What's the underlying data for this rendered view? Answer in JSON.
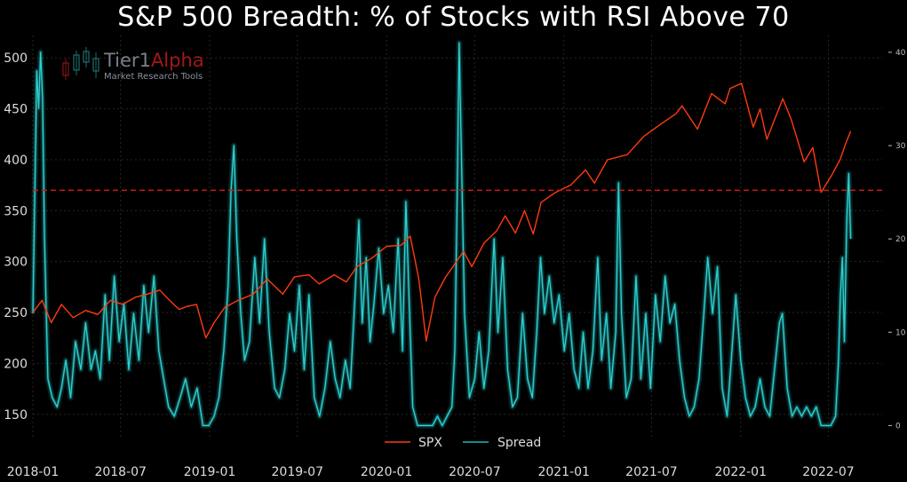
{
  "title": "S&P 500 Breadth: % of Stocks with RSI Above 70",
  "logo": {
    "name_part1": "Tier1",
    "name_part2": "Alpha",
    "tagline": "Market Research Tools"
  },
  "colors": {
    "spx": "#ff3a10",
    "spread": "#1fb8b8",
    "threshold": "#cc1a1a",
    "logo_grey": "#7a808a",
    "logo_red": "#a01818"
  },
  "chart_data": {
    "type": "line",
    "title": "S&P 500 Breadth: % of Stocks with RSI Above 70",
    "xlabel": "",
    "ylabel": "",
    "x_tick_labels": [
      "2018-01",
      "2018-07",
      "2019-01",
      "2019-07",
      "2020-01",
      "2020-07",
      "2021-01",
      "2021-07",
      "2022-01",
      "2022-07"
    ],
    "y_left_ticks": [
      150,
      200,
      250,
      300,
      350,
      400,
      450,
      500
    ],
    "y_left_lim": [
      128,
      522
    ],
    "y_right_ticks": [
      0,
      10,
      20,
      30,
      40
    ],
    "y_right_lim": [
      -1.2,
      41.8
    ],
    "grid": true,
    "legend_position": "bottom-center",
    "threshold_line": {
      "axis": "left",
      "value": 370
    },
    "series": [
      {
        "name": "SPX",
        "axis": "left",
        "points": [
          [
            "2018-01-01",
            250
          ],
          [
            "2018-01-20",
            262
          ],
          [
            "2018-02-08",
            240
          ],
          [
            "2018-03-01",
            258
          ],
          [
            "2018-03-25",
            245
          ],
          [
            "2018-04-20",
            252
          ],
          [
            "2018-05-15",
            248
          ],
          [
            "2018-06-10",
            262
          ],
          [
            "2018-07-05",
            258
          ],
          [
            "2018-08-01",
            265
          ],
          [
            "2018-08-25",
            268
          ],
          [
            "2018-09-20",
            272
          ],
          [
            "2018-10-10",
            262
          ],
          [
            "2018-10-30",
            253
          ],
          [
            "2018-11-15",
            256
          ],
          [
            "2018-12-05",
            258
          ],
          [
            "2018-12-24",
            225
          ],
          [
            "2019-01-10",
            240
          ],
          [
            "2019-02-01",
            255
          ],
          [
            "2019-03-01",
            262
          ],
          [
            "2019-04-01",
            268
          ],
          [
            "2019-04-30",
            283
          ],
          [
            "2019-06-01",
            268
          ],
          [
            "2019-06-25",
            285
          ],
          [
            "2019-07-25",
            287
          ],
          [
            "2019-08-15",
            278
          ],
          [
            "2019-09-15",
            287
          ],
          [
            "2019-10-10",
            280
          ],
          [
            "2019-11-01",
            295
          ],
          [
            "2019-12-01",
            303
          ],
          [
            "2020-01-01",
            315
          ],
          [
            "2020-01-31",
            316
          ],
          [
            "2020-02-19",
            325
          ],
          [
            "2020-03-08",
            282
          ],
          [
            "2020-03-23",
            222
          ],
          [
            "2020-04-10",
            265
          ],
          [
            "2020-05-01",
            284
          ],
          [
            "2020-06-08",
            310
          ],
          [
            "2020-06-25",
            295
          ],
          [
            "2020-07-20",
            318
          ],
          [
            "2020-08-15",
            330
          ],
          [
            "2020-09-02",
            345
          ],
          [
            "2020-09-23",
            328
          ],
          [
            "2020-10-12",
            350
          ],
          [
            "2020-10-30",
            327
          ],
          [
            "2020-11-15",
            358
          ],
          [
            "2020-12-15",
            368
          ],
          [
            "2021-01-15",
            375
          ],
          [
            "2021-02-15",
            390
          ],
          [
            "2021-03-05",
            377
          ],
          [
            "2021-04-01",
            400
          ],
          [
            "2021-05-12",
            405
          ],
          [
            "2021-06-15",
            423
          ],
          [
            "2021-07-20",
            435
          ],
          [
            "2021-08-20",
            445
          ],
          [
            "2021-09-02",
            453
          ],
          [
            "2021-10-04",
            430
          ],
          [
            "2021-11-02",
            465
          ],
          [
            "2021-11-30",
            455
          ],
          [
            "2021-12-10",
            470
          ],
          [
            "2022-01-03",
            475
          ],
          [
            "2022-01-27",
            432
          ],
          [
            "2022-02-10",
            450
          ],
          [
            "2022-02-24",
            420
          ],
          [
            "2022-03-29",
            460
          ],
          [
            "2022-04-15",
            440
          ],
          [
            "2022-05-12",
            398
          ],
          [
            "2022-05-30",
            412
          ],
          [
            "2022-06-16",
            368
          ],
          [
            "2022-07-08",
            385
          ],
          [
            "2022-07-25",
            400
          ],
          [
            "2022-08-05",
            415
          ],
          [
            "2022-08-16",
            428
          ]
        ]
      },
      {
        "name": "Spread",
        "axis": "right",
        "points": [
          [
            "2018-01-01",
            12
          ],
          [
            "2018-01-05",
            25
          ],
          [
            "2018-01-09",
            38
          ],
          [
            "2018-01-13",
            34
          ],
          [
            "2018-01-17",
            40
          ],
          [
            "2018-01-21",
            35
          ],
          [
            "2018-01-25",
            20
          ],
          [
            "2018-02-01",
            5
          ],
          [
            "2018-02-10",
            3
          ],
          [
            "2018-02-20",
            2
          ],
          [
            "2018-03-01",
            4
          ],
          [
            "2018-03-10",
            7
          ],
          [
            "2018-03-20",
            3
          ],
          [
            "2018-03-30",
            9
          ],
          [
            "2018-04-10",
            6
          ],
          [
            "2018-04-20",
            11
          ],
          [
            "2018-05-01",
            6
          ],
          [
            "2018-05-10",
            8
          ],
          [
            "2018-05-20",
            5
          ],
          [
            "2018-05-30",
            14
          ],
          [
            "2018-06-08",
            7
          ],
          [
            "2018-06-18",
            16
          ],
          [
            "2018-06-28",
            9
          ],
          [
            "2018-07-08",
            13
          ],
          [
            "2018-07-18",
            6
          ],
          [
            "2018-07-28",
            12
          ],
          [
            "2018-08-08",
            7
          ],
          [
            "2018-08-18",
            15
          ],
          [
            "2018-08-28",
            10
          ],
          [
            "2018-09-08",
            16
          ],
          [
            "2018-09-18",
            8
          ],
          [
            "2018-09-28",
            5
          ],
          [
            "2018-10-08",
            2
          ],
          [
            "2018-10-20",
            1
          ],
          [
            "2018-11-01",
            3
          ],
          [
            "2018-11-12",
            5
          ],
          [
            "2018-11-24",
            2
          ],
          [
            "2018-12-06",
            4
          ],
          [
            "2018-12-18",
            0
          ],
          [
            "2018-12-30",
            0
          ],
          [
            "2019-01-10",
            1
          ],
          [
            "2019-01-20",
            3
          ],
          [
            "2019-01-30",
            8
          ],
          [
            "2019-02-08",
            15
          ],
          [
            "2019-02-14",
            25
          ],
          [
            "2019-02-20",
            30
          ],
          [
            "2019-02-26",
            20
          ],
          [
            "2019-03-06",
            12
          ],
          [
            "2019-03-14",
            7
          ],
          [
            "2019-03-24",
            9
          ],
          [
            "2019-04-04",
            18
          ],
          [
            "2019-04-14",
            11
          ],
          [
            "2019-04-24",
            20
          ],
          [
            "2019-05-04",
            10
          ],
          [
            "2019-05-15",
            4
          ],
          [
            "2019-05-25",
            3
          ],
          [
            "2019-06-05",
            6
          ],
          [
            "2019-06-15",
            12
          ],
          [
            "2019-06-25",
            8
          ],
          [
            "2019-07-05",
            15
          ],
          [
            "2019-07-15",
            6
          ],
          [
            "2019-07-25",
            14
          ],
          [
            "2019-08-05",
            3
          ],
          [
            "2019-08-16",
            1
          ],
          [
            "2019-08-27",
            4
          ],
          [
            "2019-09-07",
            9
          ],
          [
            "2019-09-17",
            5
          ],
          [
            "2019-09-27",
            3
          ],
          [
            "2019-10-08",
            7
          ],
          [
            "2019-10-18",
            4
          ],
          [
            "2019-10-28",
            14
          ],
          [
            "2019-11-05",
            22
          ],
          [
            "2019-11-12",
            11
          ],
          [
            "2019-11-20",
            18
          ],
          [
            "2019-11-28",
            9
          ],
          [
            "2019-12-06",
            13
          ],
          [
            "2019-12-16",
            19
          ],
          [
            "2019-12-26",
            12
          ],
          [
            "2020-01-05",
            15
          ],
          [
            "2020-01-15",
            10
          ],
          [
            "2020-01-25",
            20
          ],
          [
            "2020-02-03",
            8
          ],
          [
            "2020-02-10",
            24
          ],
          [
            "2020-02-17",
            13
          ],
          [
            "2020-02-24",
            2
          ],
          [
            "2020-03-05",
            0
          ],
          [
            "2020-03-15",
            0
          ],
          [
            "2020-03-25",
            0
          ],
          [
            "2020-04-05",
            0
          ],
          [
            "2020-04-15",
            1
          ],
          [
            "2020-04-25",
            0
          ],
          [
            "2020-05-05",
            1
          ],
          [
            "2020-05-15",
            2
          ],
          [
            "2020-05-21",
            8
          ],
          [
            "2020-05-26",
            25
          ],
          [
            "2020-05-30",
            41
          ],
          [
            "2020-06-04",
            28
          ],
          [
            "2020-06-10",
            12
          ],
          [
            "2020-06-20",
            3
          ],
          [
            "2020-07-01",
            5
          ],
          [
            "2020-07-10",
            10
          ],
          [
            "2020-07-20",
            4
          ],
          [
            "2020-07-30",
            8
          ],
          [
            "2020-08-10",
            20
          ],
          [
            "2020-08-18",
            10
          ],
          [
            "2020-08-28",
            18
          ],
          [
            "2020-09-07",
            6
          ],
          [
            "2020-09-17",
            2
          ],
          [
            "2020-09-27",
            3
          ],
          [
            "2020-10-08",
            12
          ],
          [
            "2020-10-18",
            5
          ],
          [
            "2020-10-28",
            3
          ],
          [
            "2020-11-06",
            10
          ],
          [
            "2020-11-14",
            18
          ],
          [
            "2020-11-22",
            12
          ],
          [
            "2020-12-02",
            16
          ],
          [
            "2020-12-12",
            11
          ],
          [
            "2020-12-22",
            14
          ],
          [
            "2021-01-02",
            8
          ],
          [
            "2021-01-12",
            12
          ],
          [
            "2021-01-22",
            6
          ],
          [
            "2021-02-01",
            4
          ],
          [
            "2021-02-10",
            10
          ],
          [
            "2021-02-20",
            4
          ],
          [
            "2021-03-02",
            8
          ],
          [
            "2021-03-12",
            18
          ],
          [
            "2021-03-20",
            7
          ],
          [
            "2021-03-30",
            12
          ],
          [
            "2021-04-08",
            4
          ],
          [
            "2021-04-18",
            10
          ],
          [
            "2021-04-24",
            26
          ],
          [
            "2021-04-30",
            12
          ],
          [
            "2021-05-10",
            3
          ],
          [
            "2021-05-20",
            5
          ],
          [
            "2021-05-30",
            16
          ],
          [
            "2021-06-09",
            5
          ],
          [
            "2021-06-19",
            12
          ],
          [
            "2021-06-29",
            4
          ],
          [
            "2021-07-09",
            14
          ],
          [
            "2021-07-19",
            9
          ],
          [
            "2021-07-29",
            16
          ],
          [
            "2021-08-08",
            11
          ],
          [
            "2021-08-18",
            13
          ],
          [
            "2021-08-28",
            7
          ],
          [
            "2021-09-07",
            3
          ],
          [
            "2021-09-17",
            1
          ],
          [
            "2021-09-27",
            2
          ],
          [
            "2021-10-07",
            5
          ],
          [
            "2021-10-17",
            12
          ],
          [
            "2021-10-25",
            18
          ],
          [
            "2021-11-04",
            12
          ],
          [
            "2021-11-14",
            17
          ],
          [
            "2021-11-24",
            4
          ],
          [
            "2021-12-04",
            1
          ],
          [
            "2021-12-14",
            8
          ],
          [
            "2021-12-22",
            14
          ],
          [
            "2022-01-01",
            7
          ],
          [
            "2022-01-11",
            3
          ],
          [
            "2022-01-21",
            1
          ],
          [
            "2022-01-31",
            2
          ],
          [
            "2022-02-10",
            5
          ],
          [
            "2022-02-20",
            2
          ],
          [
            "2022-03-02",
            1
          ],
          [
            "2022-03-12",
            6
          ],
          [
            "2022-03-22",
            11
          ],
          [
            "2022-03-28",
            12
          ],
          [
            "2022-04-07",
            4
          ],
          [
            "2022-04-17",
            1
          ],
          [
            "2022-04-27",
            2
          ],
          [
            "2022-05-07",
            1
          ],
          [
            "2022-05-17",
            2
          ],
          [
            "2022-05-27",
            1
          ],
          [
            "2022-06-06",
            2
          ],
          [
            "2022-06-16",
            0
          ],
          [
            "2022-06-26",
            0
          ],
          [
            "2022-07-06",
            0
          ],
          [
            "2022-07-16",
            1
          ],
          [
            "2022-07-22",
            7
          ],
          [
            "2022-07-26",
            14
          ],
          [
            "2022-07-30",
            18
          ],
          [
            "2022-08-03",
            9
          ],
          [
            "2022-08-08",
            22
          ],
          [
            "2022-08-12",
            27
          ],
          [
            "2022-08-16",
            20
          ]
        ]
      }
    ]
  }
}
